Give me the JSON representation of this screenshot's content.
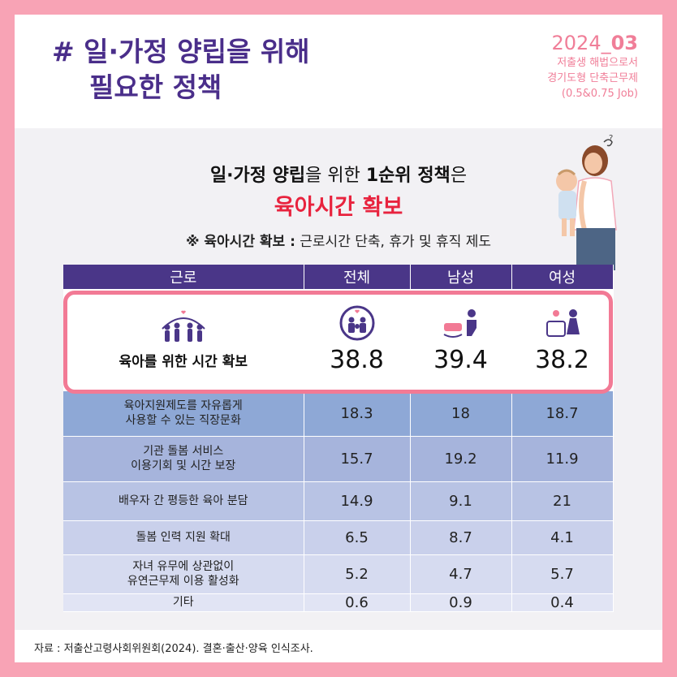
{
  "header": {
    "title_line1": "# 일·가정 양립을 위해",
    "title_line2": "필요한 정책",
    "badge_prefix": "2024_",
    "badge_number": "03",
    "badge_sub1": "저출생 해법으로서",
    "badge_sub2": "경기도형 단축근무제",
    "badge_sub3": "(0.5&0.75 Job)"
  },
  "headline": {
    "line1_a": "일·가정 양립",
    "line1_b": "을 위한 ",
    "line1_c": "1순위 정책",
    "line1_d": "은",
    "line2": "육아시간 확보",
    "note_label": "※ 육아시간 확보 :",
    "note_text": " 근로시간 단축, 휴가 및 휴직 제도"
  },
  "table": {
    "columns": [
      "근로",
      "전체",
      "남성",
      "여성"
    ],
    "highlight": {
      "label": "육아를 위한 시간 확보",
      "values": [
        "38.8",
        "39.4",
        "38.2"
      ]
    },
    "rows": [
      {
        "label_1": "육아지원제도를 자유롭게",
        "label_2": "사용할 수 있는 직장문화",
        "values": [
          "18.3",
          "18",
          "18.7"
        ]
      },
      {
        "label_1": "기관 돌봄 서비스",
        "label_2": "이용기회 및 시간 보장",
        "values": [
          "15.7",
          "19.2",
          "11.9"
        ]
      },
      {
        "label_1": "배우자 간 평등한 육아 분담",
        "label_2": "",
        "values": [
          "14.9",
          "9.1",
          "21"
        ]
      },
      {
        "label_1": "돌봄 인력 지원 확대",
        "label_2": "",
        "values": [
          "6.5",
          "8.7",
          "4.1"
        ]
      },
      {
        "label_1": "자녀 유무에 상관없이",
        "label_2": "유연근무제 이용 활성화",
        "values": [
          "5.2",
          "4.7",
          "5.7"
        ]
      },
      {
        "label_1": "기타",
        "label_2": "",
        "values": [
          "0.6",
          "0.9",
          "0.4"
        ]
      }
    ]
  },
  "source": "자료 : 저출산고령사회위원회(2024). 결혼·출산·양육 인식조사.",
  "icons": [
    "family-icon",
    "parents-child-icon",
    "father-crib-icon",
    "mother-crib-icon",
    "mother-baby-illustration"
  ],
  "colors": {
    "frame": "#f8a3b5",
    "title": "#4a2e8a",
    "accent": "#f07e98",
    "highlight_red": "#e8233e",
    "table_header": "#4a3688",
    "highlight_border": "#f27a95"
  }
}
